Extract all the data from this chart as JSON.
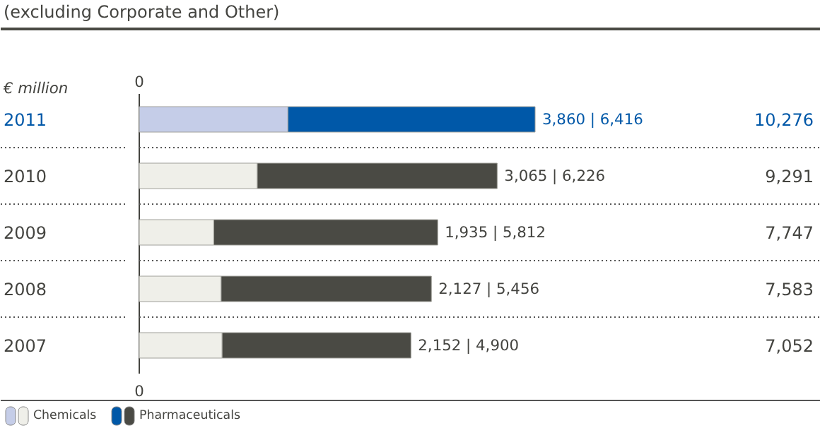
{
  "chart_data": {
    "type": "bar",
    "orientation": "horizontal",
    "stacked": true,
    "subtitle": "(excluding Corporate and Other)",
    "xlabel": "€ million",
    "categories": [
      "2011",
      "2010",
      "2009",
      "2008",
      "2007"
    ],
    "series": [
      {
        "name": "Chemicals",
        "colors": [
          "#c5cde8",
          "#efefe9",
          "#efefe9",
          "#efefe9",
          "#efefe9"
        ],
        "values": [
          3860,
          3065,
          1935,
          2127,
          2152
        ]
      },
      {
        "name": "Pharmaceuticals",
        "colors": [
          "#0058a8",
          "#4a4a44",
          "#4a4a44",
          "#4a4a44",
          "#4a4a44"
        ],
        "values": [
          6416,
          6226,
          5812,
          5456,
          4900
        ],
        "value_labels": [
          "3,860 | 6,416",
          "3,065 | 6,226",
          "1,935 | 5,812",
          "2,127 | 5,456",
          "2,152 | 4,900"
        ]
      }
    ],
    "annotations": [
      "0",
      "0",
      "10,276",
      "9,291",
      "7,747",
      "7,583",
      "7,052"
    ],
    "legend": "bottom left"
  }
}
